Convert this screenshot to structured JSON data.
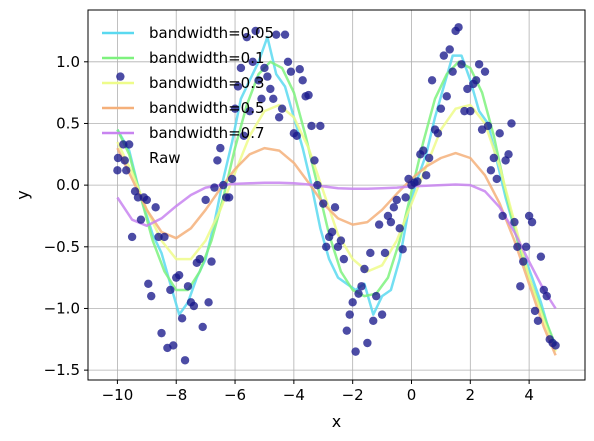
{
  "chart_data": {
    "type": "line",
    "xlabel": "x",
    "ylabel": "y",
    "xlim": [
      -11.0,
      5.9
    ],
    "ylim": [
      -1.58,
      1.42
    ],
    "xticks": [
      -10,
      -8,
      -6,
      -4,
      -2,
      0,
      2,
      4
    ],
    "xtick_labels": [
      "−10",
      "−8",
      "−6",
      "−4",
      "−2",
      "0",
      "2",
      "4"
    ],
    "yticks": [
      -1.5,
      -1.0,
      -0.5,
      0.0,
      0.5,
      1.0
    ],
    "ytick_labels": [
      "−1.5",
      "−1.0",
      "−0.5",
      "0.0",
      "0.5",
      "1.0"
    ],
    "grid": true,
    "legend_position": "upper-left",
    "series": [
      {
        "name": "bandwidth=0.05",
        "color": "#5ad9f0",
        "x": [
          -10,
          -9.6,
          -9.2,
          -8.8,
          -8.5,
          -8.2,
          -7.9,
          -7.6,
          -7.3,
          -7.0,
          -6.7,
          -6.4,
          -6.1,
          -5.8,
          -5.5,
          -5.2,
          -4.9,
          -4.6,
          -4.3,
          -4.0,
          -3.7,
          -3.4,
          -3.1,
          -2.8,
          -2.5,
          -2.2,
          -1.9,
          -1.6,
          -1.3,
          -1.0,
          -0.7,
          -0.4,
          -0.1,
          0.2,
          0.5,
          0.8,
          1.1,
          1.4,
          1.7,
          2.0,
          2.3,
          2.6,
          2.9,
          3.2,
          3.5,
          3.8,
          4.1,
          4.4,
          4.7,
          4.9
        ],
        "values": [
          0.45,
          0.28,
          -0.1,
          -0.4,
          -0.55,
          -0.8,
          -1.05,
          -0.95,
          -0.75,
          -0.6,
          -0.3,
          0.05,
          0.35,
          0.7,
          0.85,
          1.0,
          1.2,
          0.9,
          0.8,
          0.55,
          0.3,
          0.0,
          -0.35,
          -0.6,
          -0.75,
          -0.8,
          -0.85,
          -0.8,
          -1.05,
          -0.9,
          -0.85,
          -0.6,
          -0.2,
          0.05,
          0.25,
          0.55,
          0.8,
          1.05,
          1.05,
          0.85,
          0.6,
          0.5,
          0.2,
          -0.1,
          -0.35,
          -0.55,
          -0.75,
          -0.95,
          -1.2,
          -1.3
        ]
      },
      {
        "name": "bandwidth=0.1",
        "color": "#7ef27e",
        "x": [
          -10,
          -9.6,
          -9.2,
          -8.8,
          -8.4,
          -8.0,
          -7.6,
          -7.2,
          -6.8,
          -6.4,
          -6.0,
          -5.6,
          -5.2,
          -4.8,
          -4.4,
          -4.0,
          -3.6,
          -3.2,
          -2.8,
          -2.4,
          -2.0,
          -1.6,
          -1.2,
          -0.8,
          -0.4,
          0.0,
          0.4,
          0.8,
          1.2,
          1.6,
          2.0,
          2.4,
          2.8,
          3.2,
          3.6,
          4.0,
          4.4,
          4.9
        ],
        "values": [
          0.45,
          0.25,
          -0.1,
          -0.45,
          -0.7,
          -0.85,
          -0.85,
          -0.7,
          -0.45,
          -0.1,
          0.3,
          0.65,
          0.9,
          1.0,
          0.95,
          0.75,
          0.4,
          0.0,
          -0.4,
          -0.7,
          -0.85,
          -0.9,
          -0.88,
          -0.75,
          -0.45,
          -0.05,
          0.35,
          0.7,
          0.9,
          1.0,
          0.95,
          0.75,
          0.4,
          -0.05,
          -0.45,
          -0.75,
          -1.0,
          -1.3
        ]
      },
      {
        "name": "bandwidth=0.3",
        "color": "#eefc8a",
        "x": [
          -10,
          -9.5,
          -9.0,
          -8.5,
          -8.0,
          -7.5,
          -7.0,
          -6.5,
          -6.0,
          -5.5,
          -5.0,
          -4.5,
          -4.0,
          -3.5,
          -3.0,
          -2.5,
          -2.0,
          -1.5,
          -1.0,
          -0.5,
          0.0,
          0.5,
          1.0,
          1.5,
          2.0,
          2.5,
          3.0,
          3.5,
          4.0,
          4.5,
          4.9
        ],
        "values": [
          0.35,
          0.1,
          -0.2,
          -0.45,
          -0.6,
          -0.6,
          -0.45,
          -0.2,
          0.1,
          0.4,
          0.6,
          0.65,
          0.55,
          0.3,
          -0.05,
          -0.4,
          -0.6,
          -0.7,
          -0.65,
          -0.45,
          -0.15,
          0.15,
          0.45,
          0.62,
          0.65,
          0.5,
          0.15,
          -0.3,
          -0.75,
          -1.1,
          -1.35
        ]
      },
      {
        "name": "bandwidth=0.5",
        "color": "#f5b07a",
        "x": [
          -10,
          -9.5,
          -9.0,
          -8.5,
          -8.0,
          -7.5,
          -7.0,
          -6.5,
          -6.0,
          -5.5,
          -5.0,
          -4.5,
          -4.0,
          -3.5,
          -3.0,
          -2.5,
          -2.0,
          -1.5,
          -1.0,
          -0.5,
          0.0,
          0.5,
          1.0,
          1.5,
          2.0,
          2.5,
          3.0,
          3.5,
          4.0,
          4.5,
          4.9
        ],
        "values": [
          0.3,
          0.05,
          -0.2,
          -0.38,
          -0.43,
          -0.35,
          -0.2,
          -0.03,
          0.13,
          0.25,
          0.3,
          0.28,
          0.18,
          0.02,
          -0.15,
          -0.27,
          -0.32,
          -0.3,
          -0.2,
          -0.07,
          0.05,
          0.15,
          0.22,
          0.26,
          0.22,
          0.08,
          -0.15,
          -0.45,
          -0.8,
          -1.15,
          -1.38
        ]
      },
      {
        "name": "bandwidth=0.7",
        "color": "#c884f0",
        "x": [
          -10,
          -9.5,
          -9.0,
          -8.5,
          -8.0,
          -7.5,
          -7.0,
          -6.5,
          -6.0,
          -5.5,
          -5.0,
          -4.5,
          -4.0,
          -3.5,
          -3.0,
          -2.5,
          -2.0,
          -1.5,
          -1.0,
          -0.5,
          0.0,
          0.5,
          1.0,
          1.5,
          2.0,
          2.5,
          3.0,
          3.5,
          4.0,
          4.5,
          4.9
        ],
        "values": [
          -0.1,
          -0.28,
          -0.33,
          -0.27,
          -0.17,
          -0.08,
          -0.02,
          0.0,
          0.01,
          0.015,
          0.02,
          0.02,
          0.015,
          0.005,
          -0.01,
          -0.025,
          -0.03,
          -0.03,
          -0.025,
          -0.02,
          -0.01,
          -0.005,
          0.0,
          0.005,
          0.0,
          -0.05,
          -0.18,
          -0.38,
          -0.62,
          -0.85,
          -1.0
        ]
      }
    ],
    "scatter": {
      "name": "Raw",
      "color": "#1a1a8c",
      "points": [
        [
          -10.0,
          0.12
        ],
        [
          -9.9,
          0.88
        ],
        [
          -9.8,
          0.33
        ],
        [
          -9.75,
          0.2
        ],
        [
          -9.7,
          0.12
        ],
        [
          -9.6,
          0.33
        ],
        [
          -9.5,
          -0.42
        ],
        [
          -9.4,
          -0.05
        ],
        [
          -9.3,
          -0.1
        ],
        [
          -9.2,
          -0.28
        ],
        [
          -9.1,
          -0.1
        ],
        [
          -9.0,
          -0.12
        ],
        [
          -8.95,
          -0.8
        ],
        [
          -8.85,
          -0.9
        ],
        [
          -8.7,
          -0.18
        ],
        [
          -8.6,
          -0.42
        ],
        [
          -8.5,
          -1.2
        ],
        [
          -8.4,
          -0.42
        ],
        [
          -8.3,
          -1.32
        ],
        [
          -8.2,
          -0.85
        ],
        [
          -8.1,
          -1.3
        ],
        [
          -8.0,
          -0.75
        ],
        [
          -7.9,
          -0.73
        ],
        [
          -7.8,
          -1.08
        ],
        [
          -7.7,
          -1.42
        ],
        [
          -7.6,
          -0.82
        ],
        [
          -7.5,
          -0.95
        ],
        [
          -7.4,
          -0.98
        ],
        [
          -7.3,
          -0.63
        ],
        [
          -7.2,
          -0.6
        ],
        [
          -7.1,
          -1.15
        ],
        [
          -7.0,
          -0.12
        ],
        [
          -6.9,
          -0.95
        ],
        [
          -6.8,
          -0.62
        ],
        [
          -6.7,
          -0.02
        ],
        [
          -6.6,
          0.2
        ],
        [
          -6.5,
          0.3
        ],
        [
          -6.4,
          0.0
        ],
        [
          -6.3,
          -0.1
        ],
        [
          -6.2,
          -0.1
        ],
        [
          -6.1,
          0.05
        ],
        [
          -6.0,
          0.62
        ],
        [
          -5.9,
          0.8
        ],
        [
          -5.8,
          0.95
        ],
        [
          -5.7,
          0.4
        ],
        [
          -5.6,
          1.2
        ],
        [
          -5.5,
          0.6
        ],
        [
          -5.4,
          1.0
        ],
        [
          -5.3,
          1.25
        ],
        [
          -5.2,
          0.85
        ],
        [
          -5.1,
          0.7
        ],
        [
          -5.0,
          0.95
        ],
        [
          -4.9,
          0.88
        ],
        [
          -4.8,
          0.78
        ],
        [
          -4.7,
          0.7
        ],
        [
          -4.6,
          1.22
        ],
        [
          -4.5,
          0.55
        ],
        [
          -4.4,
          0.62
        ],
        [
          -4.3,
          1.22
        ],
        [
          -4.2,
          1.0
        ],
        [
          -4.1,
          0.92
        ],
        [
          -4.0,
          0.42
        ],
        [
          -3.9,
          0.4
        ],
        [
          -3.8,
          0.94
        ],
        [
          -3.7,
          0.85
        ],
        [
          -3.6,
          0.72
        ],
        [
          -3.5,
          0.73
        ],
        [
          -3.4,
          0.48
        ],
        [
          -3.3,
          0.2
        ],
        [
          -3.2,
          0.0
        ],
        [
          -3.1,
          0.48
        ],
        [
          -3.0,
          -0.15
        ],
        [
          -2.9,
          -0.5
        ],
        [
          -2.8,
          -0.42
        ],
        [
          -2.7,
          -0.38
        ],
        [
          -2.6,
          -0.18
        ],
        [
          -2.5,
          -0.5
        ],
        [
          -2.4,
          -0.45
        ],
        [
          -2.3,
          -0.6
        ],
        [
          -2.2,
          -1.18
        ],
        [
          -2.1,
          -1.05
        ],
        [
          -2.0,
          -0.95
        ],
        [
          -1.9,
          -1.35
        ],
        [
          -1.8,
          -0.88
        ],
        [
          -1.7,
          -0.82
        ],
        [
          -1.6,
          -0.68
        ],
        [
          -1.5,
          -1.28
        ],
        [
          -1.4,
          -0.55
        ],
        [
          -1.3,
          -1.1
        ],
        [
          -1.2,
          -0.9
        ],
        [
          -1.1,
          -0.32
        ],
        [
          -1.0,
          -1.05
        ],
        [
          -0.9,
          -0.55
        ],
        [
          -0.8,
          -0.25
        ],
        [
          -0.7,
          -0.3
        ],
        [
          -0.6,
          -0.18
        ],
        [
          -0.5,
          -0.12
        ],
        [
          -0.4,
          -0.35
        ],
        [
          -0.3,
          -0.52
        ],
        [
          -0.2,
          -0.1
        ],
        [
          -0.1,
          0.05
        ],
        [
          0.0,
          0.0
        ],
        [
          0.1,
          0.02
        ],
        [
          0.2,
          0.03
        ],
        [
          0.3,
          0.25
        ],
        [
          0.4,
          0.28
        ],
        [
          0.5,
          0.08
        ],
        [
          0.6,
          0.22
        ],
        [
          0.7,
          0.85
        ],
        [
          0.8,
          0.45
        ],
        [
          0.9,
          0.42
        ],
        [
          1.0,
          0.62
        ],
        [
          1.1,
          1.05
        ],
        [
          1.2,
          0.72
        ],
        [
          1.3,
          1.1
        ],
        [
          1.4,
          0.92
        ],
        [
          1.5,
          1.25
        ],
        [
          1.6,
          1.28
        ],
        [
          1.7,
          0.98
        ],
        [
          1.8,
          0.6
        ],
        [
          1.9,
          0.78
        ],
        [
          2.0,
          0.6
        ],
        [
          2.1,
          0.82
        ],
        [
          2.2,
          0.85
        ],
        [
          2.3,
          0.98
        ],
        [
          2.4,
          0.45
        ],
        [
          2.5,
          0.92
        ],
        [
          2.6,
          0.48
        ],
        [
          2.7,
          0.12
        ],
        [
          2.8,
          0.22
        ],
        [
          2.9,
          0.05
        ],
        [
          3.0,
          0.42
        ],
        [
          3.1,
          -0.25
        ],
        [
          3.2,
          0.2
        ],
        [
          3.3,
          0.25
        ],
        [
          3.4,
          0.5
        ],
        [
          3.5,
          -0.3
        ],
        [
          3.6,
          -0.5
        ],
        [
          3.7,
          -0.82
        ],
        [
          3.8,
          -0.62
        ],
        [
          3.9,
          -0.5
        ],
        [
          4.0,
          -0.25
        ],
        [
          4.1,
          -0.3
        ],
        [
          4.2,
          -1.02
        ],
        [
          4.3,
          -1.1
        ],
        [
          4.4,
          -0.58
        ],
        [
          4.5,
          -0.85
        ],
        [
          4.6,
          -0.9
        ],
        [
          4.7,
          -1.25
        ],
        [
          4.8,
          -1.28
        ],
        [
          4.9,
          -1.3
        ]
      ]
    }
  }
}
